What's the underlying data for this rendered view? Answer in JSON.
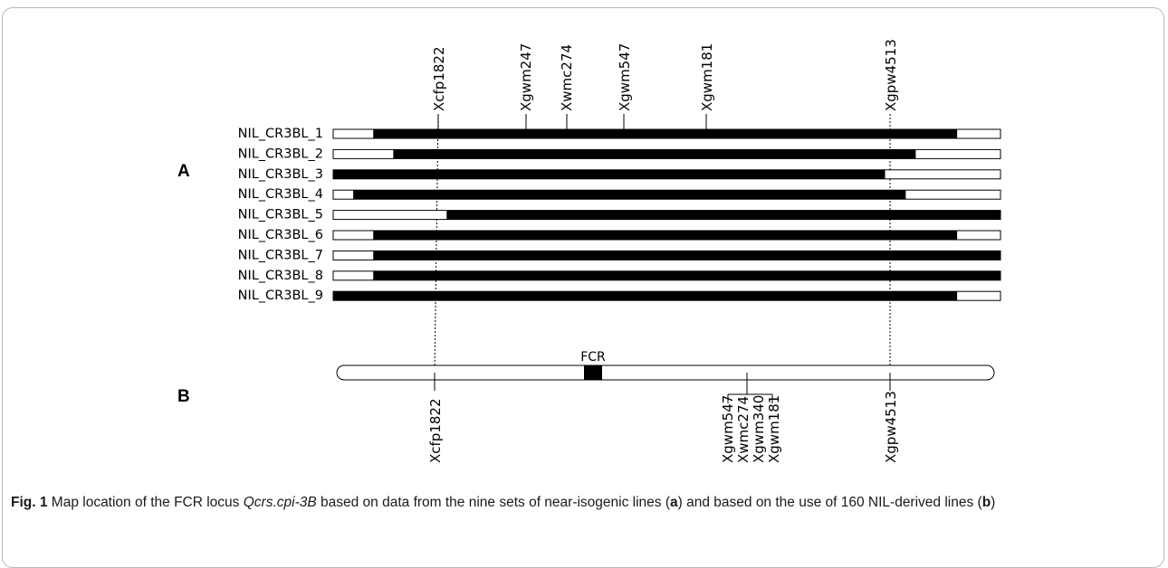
{
  "panel_a": {
    "label": "A",
    "top_markers": [
      "Xcfp1822",
      "Xgwm247",
      "Xwmc274",
      "Xgwm547",
      "Xgwm181",
      "Xgpw4513"
    ],
    "lines": [
      {
        "name": "NIL_CR3BL_1",
        "introgression": [
          0.06,
          0.935
        ]
      },
      {
        "name": "NIL_CR3BL_2",
        "introgression": [
          0.09,
          0.873
        ]
      },
      {
        "name": "NIL_CR3BL_3",
        "introgression": [
          0.0,
          0.827
        ]
      },
      {
        "name": "NIL_CR3BL_4",
        "introgression": [
          0.03,
          0.858
        ]
      },
      {
        "name": "NIL_CR3BL_5",
        "introgression": [
          0.17,
          1.0
        ]
      },
      {
        "name": "NIL_CR3BL_6",
        "introgression": [
          0.06,
          0.935
        ]
      },
      {
        "name": "NIL_CR3BL_7",
        "introgression": [
          0.06,
          1.0
        ]
      },
      {
        "name": "NIL_CR3BL_8",
        "introgression": [
          0.06,
          1.0
        ]
      },
      {
        "name": "NIL_CR3BL_9",
        "introgression": [
          0.0,
          0.935
        ]
      }
    ]
  },
  "panel_b": {
    "label": "B",
    "locus_label": "FCR",
    "bottom_markers": [
      "Xcfp1822",
      "Xgwm547",
      "Xwmc274",
      "Xgwm340",
      "Xgwm181",
      "Xgpw4513"
    ]
  },
  "caption": {
    "fig_label": "Fig. 1",
    "text_1": " Map location of the FCR locus ",
    "locus_italic": "Qcrs.cpi-3B",
    "text_2": " based on data from the nine sets of near-isogenic lines (",
    "label_a": "a",
    "text_3": ") and based on the use of 160 NIL-derived lines (",
    "label_b": "b",
    "text_4": ")"
  }
}
